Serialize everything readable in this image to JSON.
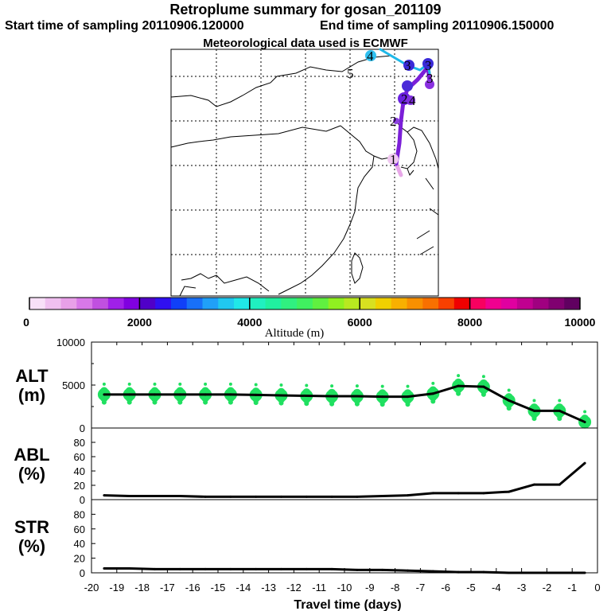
{
  "header": {
    "title": "Retroplume summary for gosan_201109",
    "start_label": "Start time of sampling 20110906.120000",
    "end_label": "End time of sampling 20110906.150000",
    "met_label": "Meteorological data used is ECMWF"
  },
  "map": {
    "cluster_labels": [
      "1",
      "2",
      "3",
      "4",
      "5"
    ],
    "path_colors": [
      "#e8a8e8",
      "#7b1fd8",
      "#1fb8e8"
    ]
  },
  "colorbar": {
    "label": "Altitude (m)",
    "ticks": [
      "0",
      "2000",
      "4000",
      "6000",
      "8000",
      "10000"
    ],
    "colors": [
      "#f8e0f8",
      "#f0c0f0",
      "#e8a0e8",
      "#d878e8",
      "#c050e0",
      "#a020e8",
      "#8000e0",
      "#5000c8",
      "#3010f0",
      "#1040f8",
      "#1870f8",
      "#20a0f8",
      "#20c8f0",
      "#20e8e8",
      "#20f0c0",
      "#20f0a0",
      "#30f080",
      "#40f060",
      "#60f040",
      "#90f020",
      "#b8e820",
      "#d8e020",
      "#f0d000",
      "#f8b000",
      "#f89000",
      "#f87000",
      "#f84000",
      "#f00000",
      "#f80060",
      "#f00090",
      "#e000a0",
      "#c00090",
      "#a00080",
      "#800070",
      "#600060"
    ]
  },
  "chart_data": [
    {
      "type": "line",
      "name": "ALT",
      "ylabel": "ALT\n(m)",
      "ylabel_lines": [
        "ALT",
        "(m)"
      ],
      "ylim": [
        0,
        10000
      ],
      "yticks": [
        "10000",
        "5000",
        "0"
      ],
      "x": [
        -19.5,
        -18.5,
        -17.5,
        -16.5,
        -15.5,
        -14.5,
        -13.5,
        -12.5,
        -11.5,
        -10.5,
        -9.5,
        -8.5,
        -7.5,
        -6.5,
        -5.5,
        -4.5,
        -3.5,
        -2.5,
        -1.5,
        -0.5
      ],
      "values": [
        3900,
        3900,
        3900,
        3900,
        3900,
        3900,
        3850,
        3800,
        3750,
        3700,
        3700,
        3650,
        3650,
        4000,
        4900,
        4800,
        3200,
        2000,
        2000,
        700
      ]
    },
    {
      "type": "line",
      "name": "ABL",
      "ylabel": "ABL\n(%)",
      "ylabel_lines": [
        "ABL",
        "(%)"
      ],
      "ylim": [
        0,
        100
      ],
      "yticks": [
        "80",
        "60",
        "40",
        "20",
        "0"
      ],
      "x": [
        -19.5,
        -18.5,
        -17.5,
        -16.5,
        -15.5,
        -14.5,
        -13.5,
        -12.5,
        -11.5,
        -10.5,
        -9.5,
        -8.5,
        -7.5,
        -6.5,
        -5.5,
        -4.5,
        -3.5,
        -2.5,
        -1.5,
        -0.5
      ],
      "values": [
        6,
        5,
        5,
        5,
        4,
        4,
        4,
        4,
        4,
        4,
        4,
        5,
        6,
        9,
        9,
        9,
        11,
        21,
        21,
        51
      ]
    },
    {
      "type": "line",
      "name": "STR",
      "ylabel": "STR\n(%)",
      "ylabel_lines": [
        "STR",
        "(%)"
      ],
      "ylim": [
        0,
        100
      ],
      "yticks": [
        "80",
        "60",
        "40",
        "20",
        "0"
      ],
      "x": [
        -19.5,
        -18.5,
        -17.5,
        -16.5,
        -15.5,
        -14.5,
        -13.5,
        -12.5,
        -11.5,
        -10.5,
        -9.5,
        -8.5,
        -7.5,
        -6.5,
        -5.5,
        -4.5,
        -3.5,
        -2.5,
        -1.5,
        -0.5
      ],
      "values": [
        6,
        6,
        5,
        5,
        5,
        5,
        5,
        5,
        5,
        5,
        4,
        4,
        3,
        2,
        1,
        1,
        0,
        0,
        0,
        0
      ]
    }
  ],
  "xaxis": {
    "label": "Travel time (days)",
    "ticks": [
      "-20",
      "-19",
      "-18",
      "-17",
      "-16",
      "-15",
      "-14",
      "-13",
      "-12",
      "-11",
      "-10",
      "-9",
      "-8",
      "-7",
      "-6",
      "-5",
      "-4",
      "-3",
      "-2",
      "-1",
      "0"
    ]
  }
}
